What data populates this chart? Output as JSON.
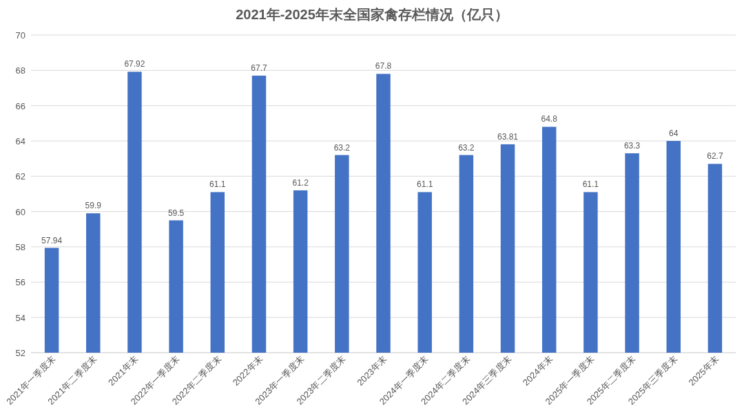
{
  "chart_data": {
    "type": "bar",
    "title": "2021年-2025年末全国家禽存栏情况（亿只）",
    "categories": [
      "2021年一季度末",
      "2021年二季度末",
      "2021年末",
      "2022年一季度末",
      "2022年二季度末",
      "2022年末",
      "2023年一季度末",
      "2023年二季度末",
      "2023年末",
      "2024年一季度末",
      "2024年二季度末",
      "2024年三季度末",
      "2024年末",
      "2025年一季度末",
      "2025年二季度末",
      "2025年三季度末",
      "2025年末"
    ],
    "values": [
      57.94,
      59.9,
      67.92,
      59.5,
      61.1,
      67.7,
      61.2,
      63.2,
      67.8,
      61.1,
      63.2,
      63.81,
      64.8,
      61.1,
      63.3,
      64,
      62.7
    ],
    "color": "#4472c4",
    "ylim": [
      52,
      70
    ],
    "yticks": [
      52,
      54,
      56,
      58,
      60,
      62,
      64,
      66,
      68,
      70
    ],
    "grid": "y",
    "data_labels": true
  }
}
